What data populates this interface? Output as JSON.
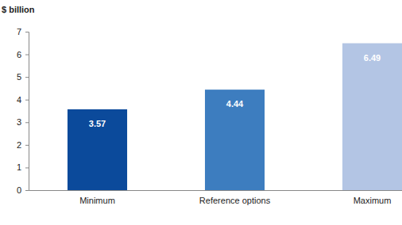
{
  "chart_data": {
    "type": "bar",
    "y_label": "$ billion",
    "categories": [
      "Minimum",
      "Reference options",
      "Maximum"
    ],
    "values": [
      3.57,
      4.44,
      6.49
    ],
    "colors": [
      "#0b4a9b",
      "#3d7dbf",
      "#b3c5e4"
    ],
    "ylim": [
      0,
      7
    ],
    "yticks": [
      0,
      1,
      2,
      3,
      4,
      5,
      6,
      7
    ],
    "grid": false,
    "data_labels": true
  }
}
